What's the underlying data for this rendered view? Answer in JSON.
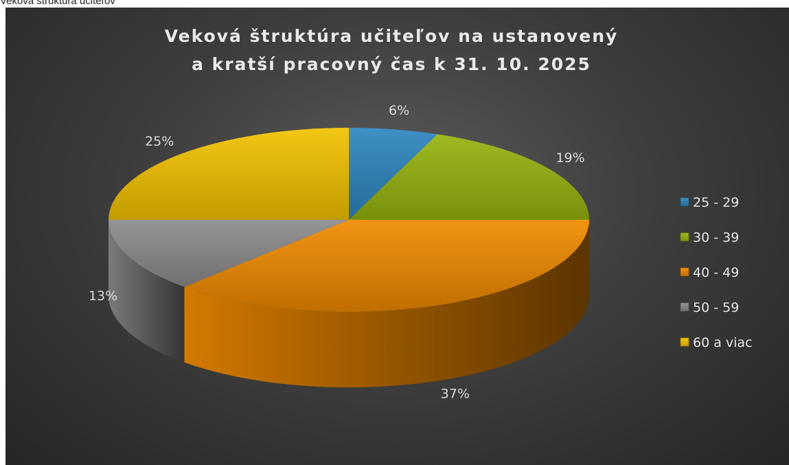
{
  "document": {
    "caption": "Veková štruktúra učiteľov"
  },
  "chart_data": {
    "type": "pie",
    "title_lines": [
      "Veková štruktúra učiteľov na ustanovený",
      "a kratší pracovný čas k 31. 10. 2025"
    ],
    "categories": [
      "25 - 29",
      "30 - 39",
      "40 - 49",
      "50 - 59",
      "60 a viac"
    ],
    "values": [
      6,
      19,
      37,
      13,
      25
    ],
    "labels": [
      "6%",
      "19%",
      "37%",
      "13%",
      "25%"
    ],
    "colors": [
      "#2e86c1",
      "#97b30f",
      "#f08a00",
      "#8c8c8c",
      "#f2c200"
    ],
    "legend_position": "right",
    "style": "3d"
  }
}
